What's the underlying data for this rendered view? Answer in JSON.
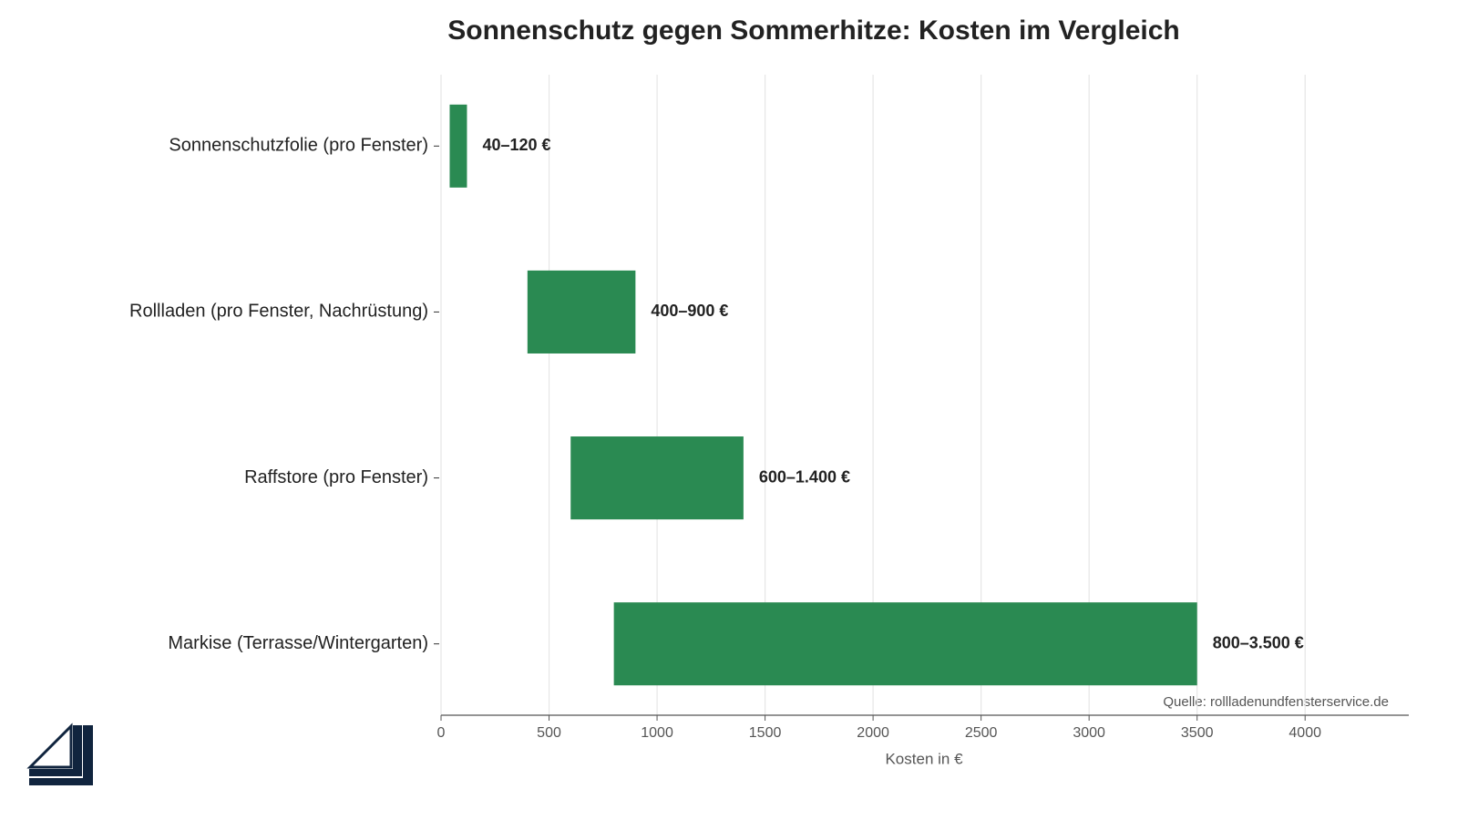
{
  "chart_data": {
    "type": "range-bar",
    "orientation": "horizontal",
    "title": "Sonnenschutz gegen Sommerhitze: Kosten im Vergleich",
    "x_label": "Kosten in €",
    "source": "Quelle: rollladenundfensterservice.de",
    "categories": [
      "Sonnenschutzfolie (pro Fenster)",
      "Rollladen (pro Fenster, Nachrüstung)",
      "Raffstore (pro Fenster)",
      "Markise (Terrasse/Wintergarten)"
    ],
    "low": [
      40,
      400,
      600,
      800
    ],
    "high": [
      120,
      900,
      1400,
      3500
    ],
    "value_labels": [
      "40–120 €",
      "400–900 €",
      "600–1.400 €",
      "800–3.500 €"
    ],
    "color": "#2a8a52",
    "xlim": [
      0,
      4480
    ],
    "xticks": [
      0,
      500,
      1000,
      1500,
      2000,
      2500,
      3000,
      3500,
      4000
    ],
    "grid": true
  }
}
